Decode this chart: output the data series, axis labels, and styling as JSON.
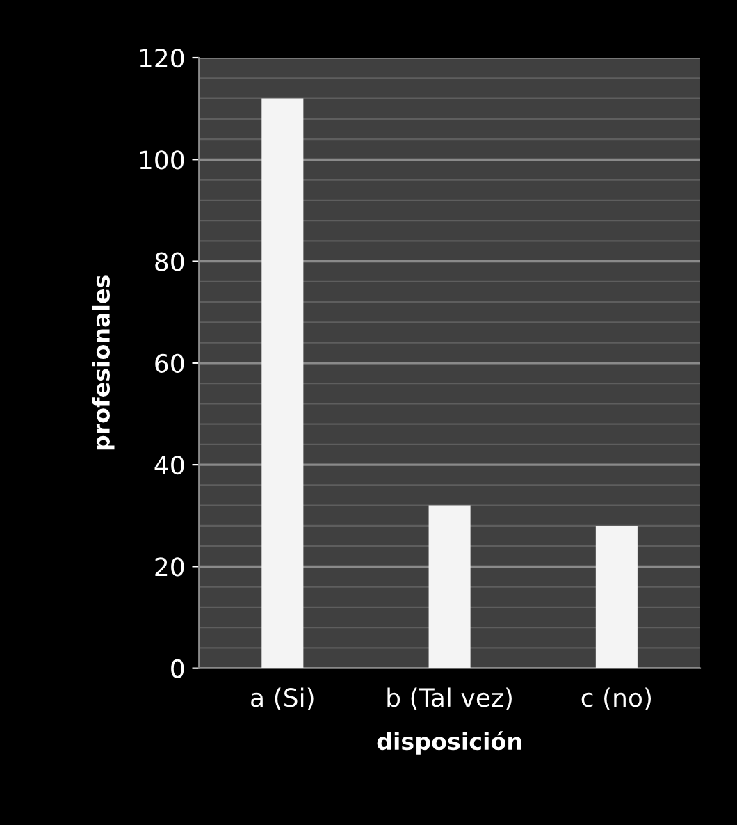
{
  "chart_data": {
    "type": "bar",
    "xlabel": "disposición",
    "ylabel": "profesionales",
    "categories": [
      "a (Si)",
      "b (Tal vez)",
      "c (no)"
    ],
    "values": [
      112,
      32,
      28
    ],
    "color": "#f4f4f4",
    "ylim": [
      0,
      120
    ],
    "yticks": [
      0,
      {
        "value": 4,
        "label": null
      },
      {
        "value": 8,
        "label": null
      },
      {
        "value": 12,
        "label": null
      },
      {
        "value": 16,
        "label": null
      },
      20,
      {
        "value": 24,
        "label": null
      },
      {
        "value": 28,
        "label": null
      },
      {
        "value": 32,
        "label": null
      },
      {
        "value": 36,
        "label": null
      },
      40,
      {
        "value": 44,
        "label": null
      },
      {
        "value": 48,
        "label": null
      },
      {
        "value": 52,
        "label": null
      },
      {
        "value": 56,
        "label": null
      },
      60,
      {
        "value": 64,
        "label": null
      },
      {
        "value": 68,
        "label": null
      },
      {
        "value": 72,
        "label": null
      },
      {
        "value": 76,
        "label": null
      },
      80,
      {
        "value": 84,
        "label": null
      },
      {
        "value": 88,
        "label": null
      },
      {
        "value": 92,
        "label": null
      },
      {
        "value": 96,
        "label": null
      },
      100,
      {
        "value": 104,
        "label": null
      },
      {
        "value": 108,
        "label": null
      },
      {
        "value": 112,
        "label": null
      },
      {
        "value": 116,
        "label": null
      },
      120
    ],
    "grid": "y"
  }
}
